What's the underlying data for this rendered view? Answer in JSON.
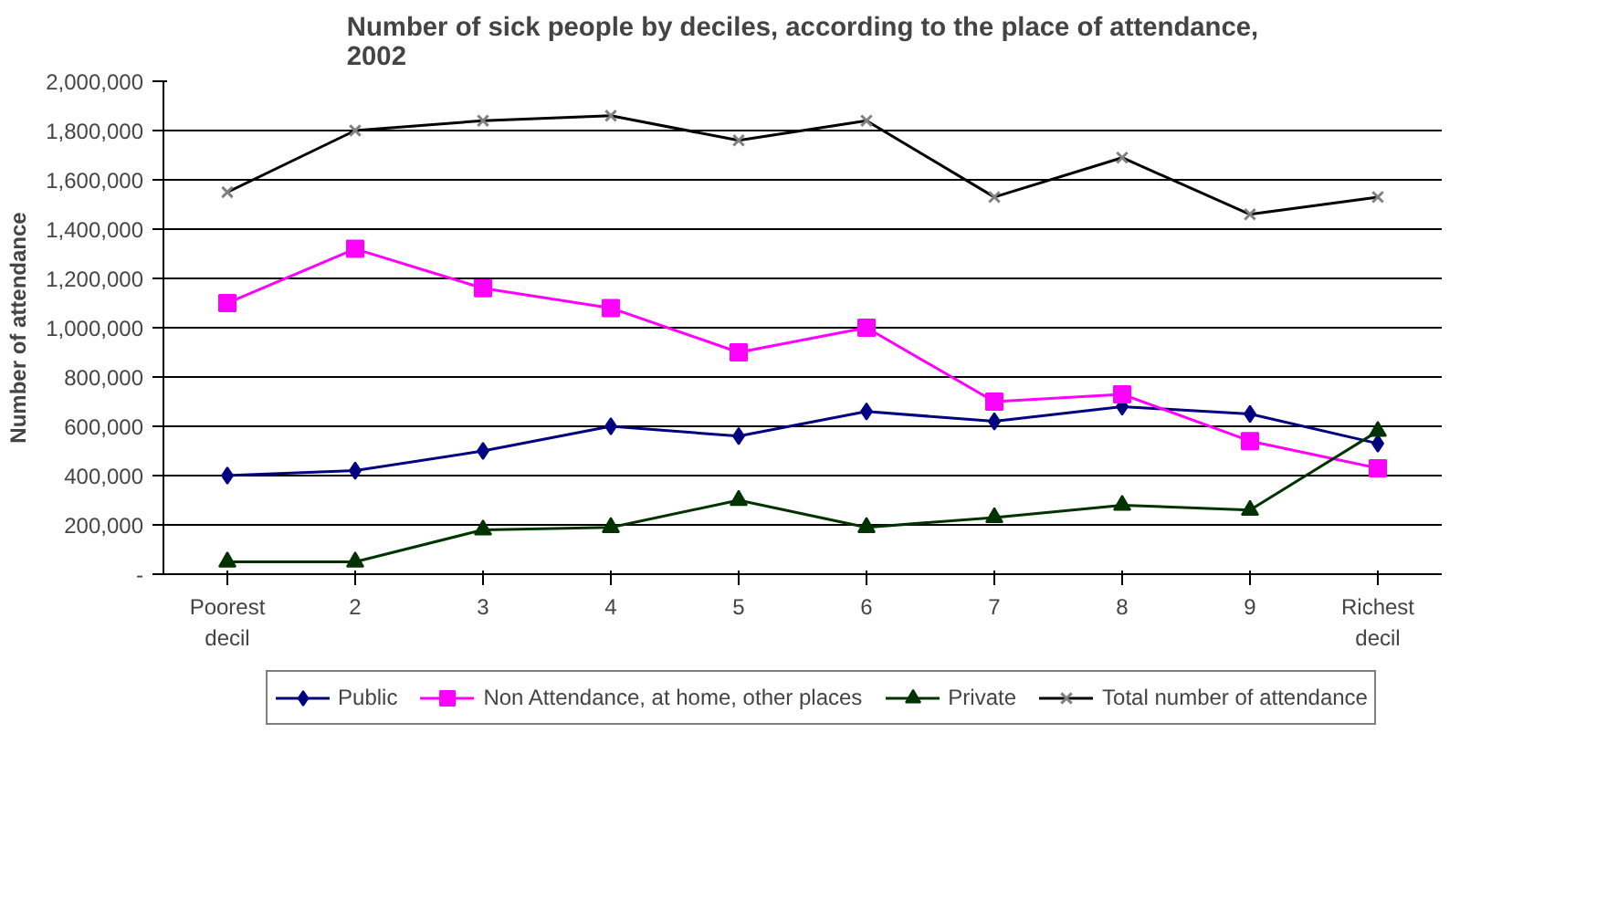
{
  "chart_data": {
    "type": "line",
    "title": "Number of sick people by deciles, according to the place of attendance,\n2002",
    "ylabel": "Number of attendance",
    "categories": [
      "Poorest decil",
      "2",
      "3",
      "4",
      "5",
      "6",
      "7",
      "8",
      "9",
      "Richest decil"
    ],
    "series": [
      {
        "name": "Public",
        "color": "#000080",
        "marker": "diamond",
        "values": [
          400000,
          420000,
          500000,
          600000,
          560000,
          660000,
          620000,
          680000,
          650000,
          530000
        ]
      },
      {
        "name": "Non Attendance, at home, other places",
        "color": "#ff00ff",
        "marker": "square",
        "values": [
          1100000,
          1320000,
          1160000,
          1080000,
          900000,
          1000000,
          700000,
          730000,
          540000,
          430000
        ]
      },
      {
        "name": "Private",
        "color": "#003300",
        "marker": "triangle",
        "values": [
          50000,
          50000,
          180000,
          190000,
          300000,
          190000,
          230000,
          280000,
          260000,
          580000
        ]
      },
      {
        "name": "Total number of attendance",
        "color": "#000000",
        "marker": "cross",
        "values": [
          1550000,
          1800000,
          1840000,
          1860000,
          1760000,
          1840000,
          1530000,
          1690000,
          1460000,
          1530000
        ]
      }
    ],
    "ylim": [
      0,
      2000000
    ],
    "yticks": [
      {
        "value": 0,
        "label": "-"
      },
      {
        "value": 200000,
        "label": "200,000"
      },
      {
        "value": 400000,
        "label": "400,000"
      },
      {
        "value": 600000,
        "label": "600,000"
      },
      {
        "value": 800000,
        "label": "800,000"
      },
      {
        "value": 1000000,
        "label": "1,000,000"
      },
      {
        "value": 1200000,
        "label": "1,200,000"
      },
      {
        "value": 1400000,
        "label": "1,400,000"
      },
      {
        "value": 1600000,
        "label": "1,600,000"
      },
      {
        "value": 1800000,
        "label": "1,800,000"
      },
      {
        "value": 2000000,
        "label": "2,000,000"
      }
    ],
    "grid": "y",
    "legend": "bottom"
  }
}
